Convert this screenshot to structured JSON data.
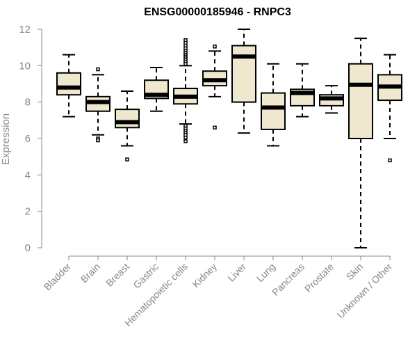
{
  "chart_data": {
    "type": "boxplot",
    "title": "ENSG00000185946 - RNPC3",
    "xlabel": "",
    "ylabel": "Expression",
    "ylim": [
      0,
      12
    ],
    "yticks": [
      0,
      2,
      4,
      6,
      8,
      10,
      12
    ],
    "grid": false,
    "colors": {
      "box_fill": "#efe8cf",
      "stroke": "#000000",
      "axis": "#888888"
    },
    "categories": [
      "Bladder",
      "Brain",
      "Breast",
      "Gastric",
      "Hematopoietic cells",
      "Kidney",
      "Liver",
      "Lung",
      "Pancreas",
      "Prostate",
      "Skin",
      "Unknown / Other"
    ],
    "boxes": [
      {
        "category": "Bladder",
        "whisker_low": 7.2,
        "q1": 8.4,
        "median": 8.8,
        "q3": 9.6,
        "whisker_high": 10.6,
        "outliers": []
      },
      {
        "category": "Brain",
        "whisker_low": 6.2,
        "q1": 7.5,
        "median": 8.0,
        "q3": 8.3,
        "whisker_high": 9.5,
        "outliers": [
          9.8,
          6.0,
          5.9
        ]
      },
      {
        "category": "Breast",
        "whisker_low": 5.6,
        "q1": 6.6,
        "median": 6.9,
        "q3": 7.6,
        "whisker_high": 8.6,
        "outliers": [
          4.85
        ]
      },
      {
        "category": "Gastric",
        "whisker_low": 7.5,
        "q1": 8.2,
        "median": 8.4,
        "q3": 9.2,
        "whisker_high": 9.9,
        "outliers": []
      },
      {
        "category": "Hematopoietic cells",
        "whisker_low": 6.8,
        "q1": 7.9,
        "median": 8.3,
        "q3": 8.75,
        "whisker_high": 10.0,
        "outliers": [
          11.4,
          11.25,
          11.1,
          10.95,
          10.8,
          10.7,
          10.6,
          10.5,
          10.4,
          10.3,
          10.2,
          10.1,
          6.7,
          6.55,
          6.4,
          6.3,
          6.2,
          6.05,
          5.85
        ]
      },
      {
        "category": "Kidney",
        "whisker_low": 8.3,
        "q1": 8.9,
        "median": 9.2,
        "q3": 9.7,
        "whisker_high": 10.8,
        "outliers": [
          11.05,
          6.6
        ]
      },
      {
        "category": "Liver",
        "whisker_low": 6.3,
        "q1": 8.0,
        "median": 10.5,
        "q3": 11.1,
        "whisker_high": 12.0,
        "outliers": []
      },
      {
        "category": "Lung",
        "whisker_low": 5.6,
        "q1": 6.5,
        "median": 7.7,
        "q3": 8.5,
        "whisker_high": 10.1,
        "outliers": []
      },
      {
        "category": "Pancreas",
        "whisker_low": 7.2,
        "q1": 7.8,
        "median": 8.5,
        "q3": 8.7,
        "whisker_high": 10.1,
        "outliers": []
      },
      {
        "category": "Prostate",
        "whisker_low": 7.4,
        "q1": 7.8,
        "median": 8.2,
        "q3": 8.4,
        "whisker_high": 8.9,
        "outliers": []
      },
      {
        "category": "Skin",
        "whisker_low": 0.0,
        "q1": 6.0,
        "median": 8.95,
        "q3": 10.1,
        "whisker_high": 11.5,
        "outliers": []
      },
      {
        "category": "Unknown / Other",
        "whisker_low": 6.0,
        "q1": 8.1,
        "median": 8.85,
        "q3": 9.5,
        "whisker_high": 10.6,
        "outliers": [
          4.8
        ]
      }
    ]
  }
}
